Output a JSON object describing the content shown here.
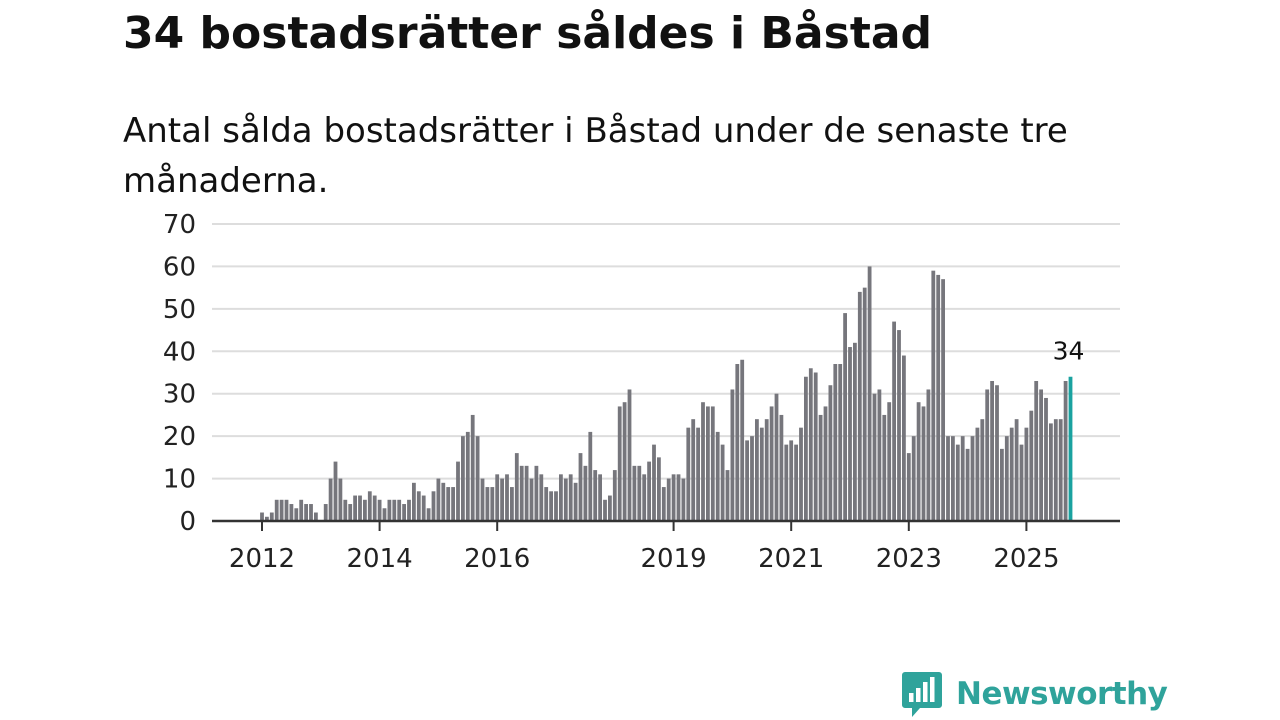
{
  "title": "34 bostadsrätter såldes i Båstad",
  "subtitle": "Antal sålda bostadsrätter i Båstad under de senaste tre månaderna.",
  "brand": {
    "name": "Newsworthy",
    "color": "#2fa39b"
  },
  "colors": {
    "bar": "#76767c",
    "highlight": "#1aa2a0",
    "grid": "#dddddd",
    "axis": "#333333"
  },
  "chart_data": {
    "type": "bar",
    "title": "",
    "xlabel": "",
    "ylabel": "",
    "ylim": [
      0,
      70
    ],
    "yticks": [
      0,
      10,
      20,
      30,
      40,
      50,
      60,
      70
    ],
    "grid": true,
    "x_ticks": [
      {
        "label": "2012",
        "index": 0
      },
      {
        "label": "2014",
        "index": 24
      },
      {
        "label": "2016",
        "index": 48
      },
      {
        "label": "2019",
        "index": 84
      },
      {
        "label": "2021",
        "index": 108
      },
      {
        "label": "2023",
        "index": 132
      },
      {
        "label": "2025",
        "index": 156
      }
    ],
    "values": [
      2,
      1,
      2,
      5,
      5,
      5,
      4,
      3,
      5,
      4,
      4,
      2,
      0,
      4,
      10,
      14,
      10,
      5,
      4,
      6,
      6,
      5,
      7,
      6,
      5,
      3,
      5,
      5,
      5,
      4,
      5,
      9,
      7,
      6,
      3,
      7,
      10,
      9,
      8,
      8,
      14,
      20,
      21,
      25,
      20,
      10,
      8,
      8,
      11,
      10,
      11,
      8,
      16,
      13,
      13,
      10,
      13,
      11,
      8,
      7,
      7,
      11,
      10,
      11,
      9,
      16,
      13,
      21,
      12,
      11,
      5,
      6,
      12,
      27,
      28,
      31,
      13,
      13,
      11,
      14,
      18,
      15,
      8,
      10,
      11,
      11,
      10,
      22,
      24,
      22,
      28,
      27,
      27,
      21,
      18,
      12,
      31,
      37,
      38,
      19,
      20,
      24,
      22,
      24,
      27,
      30,
      25,
      18,
      19,
      18,
      22,
      34,
      36,
      35,
      25,
      27,
      32,
      37,
      37,
      49,
      41,
      42,
      54,
      55,
      60,
      30,
      31,
      25,
      28,
      47,
      45,
      39,
      16,
      20,
      28,
      27,
      31,
      59,
      58,
      57,
      20,
      20,
      18,
      20,
      17,
      20,
      22,
      24,
      31,
      33,
      32,
      17,
      20,
      22,
      24,
      18,
      22,
      26,
      33,
      31,
      29,
      23,
      24,
      24,
      33,
      34
    ],
    "highlight_index": 165,
    "highlight_label": "34"
  }
}
